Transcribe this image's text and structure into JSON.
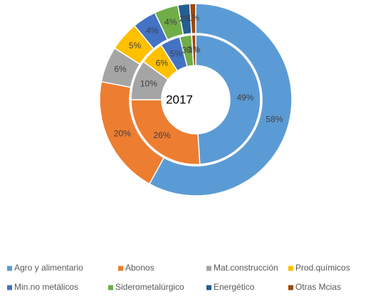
{
  "chart_data": {
    "type": "doughnut",
    "center_label": "2017",
    "categories": [
      "Agro y alimentario",
      "Abonos",
      "Mat.construcción",
      "Prod.químicos",
      "Min.no metálicos",
      "Siderometalúrgico",
      "Energético",
      "Otras Mcias"
    ],
    "colors": [
      "#5b9bd5",
      "#ed7d31",
      "#a5a5a5",
      "#ffc000",
      "#4472c4",
      "#70ad47",
      "#255e91",
      "#9e480e"
    ],
    "series": [
      {
        "values": [
          58,
          20,
          6,
          5,
          4,
          4,
          2,
          1
        ],
        "value_labels": [
          "58%",
          "20%",
          "6%",
          "5%",
          "4%",
          "4%",
          "2%",
          "1%"
        ]
      },
      {
        "values": [
          49,
          26,
          10,
          6,
          5,
          3,
          0,
          1
        ],
        "value_labels": [
          "49%",
          "26%",
          "10%",
          "6%",
          "5%",
          "3%",
          "0%",
          "1%"
        ]
      }
    ],
    "legend": "bottom"
  }
}
